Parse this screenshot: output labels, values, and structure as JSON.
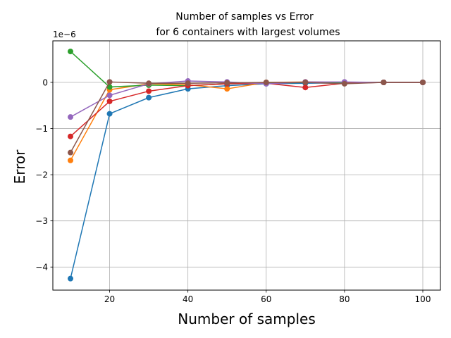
{
  "chart_data": {
    "type": "line",
    "title_line1": "Number of samples vs Error",
    "title_line2": "for 6 containers with largest volumes",
    "xlabel": "Number of samples",
    "ylabel": "Error",
    "offset_label": "1e−6",
    "xlim": [
      5.5,
      104.5
    ],
    "ylim": [
      -4.5,
      0.9
    ],
    "y_scale_factor": 1e-06,
    "grid": true,
    "legend": "none",
    "xticks": [
      20,
      40,
      60,
      80,
      100
    ],
    "xtick_labels": [
      "20",
      "40",
      "60",
      "80",
      "100"
    ],
    "yticks": [
      -4,
      -3,
      -2,
      -1,
      0
    ],
    "ytick_labels": [
      "−4",
      "−3",
      "−2",
      "−1",
      "0"
    ],
    "x": [
      10,
      20,
      30,
      40,
      50,
      60,
      70,
      80,
      90,
      100
    ],
    "series": [
      {
        "color": "#1f77b4",
        "values": [
          -4.25,
          -0.68,
          -0.33,
          -0.14,
          -0.07,
          -0.03,
          -0.02,
          -0.01,
          0.0,
          0.0
        ]
      },
      {
        "color": "#ff7f0e",
        "values": [
          -1.69,
          -0.16,
          -0.03,
          -0.05,
          -0.14,
          0.0,
          0.01,
          0.0,
          0.0,
          0.0
        ]
      },
      {
        "color": "#2ca02c",
        "values": [
          0.67,
          -0.1,
          -0.06,
          -0.07,
          -0.03,
          -0.02,
          0.0,
          0.0,
          0.0,
          0.0
        ]
      },
      {
        "color": "#d62728",
        "values": [
          -1.17,
          -0.41,
          -0.19,
          -0.07,
          -0.03,
          -0.02,
          -0.11,
          -0.02,
          0.0,
          0.0
        ]
      },
      {
        "color": "#9467bd",
        "values": [
          -0.75,
          -0.28,
          -0.03,
          0.03,
          0.01,
          -0.03,
          0.01,
          0.01,
          0.0,
          0.0
        ]
      },
      {
        "color": "#8c564b",
        "values": [
          -1.52,
          0.01,
          -0.02,
          -0.02,
          -0.01,
          0.0,
          0.0,
          -0.03,
          0.0,
          0.0
        ]
      }
    ]
  }
}
